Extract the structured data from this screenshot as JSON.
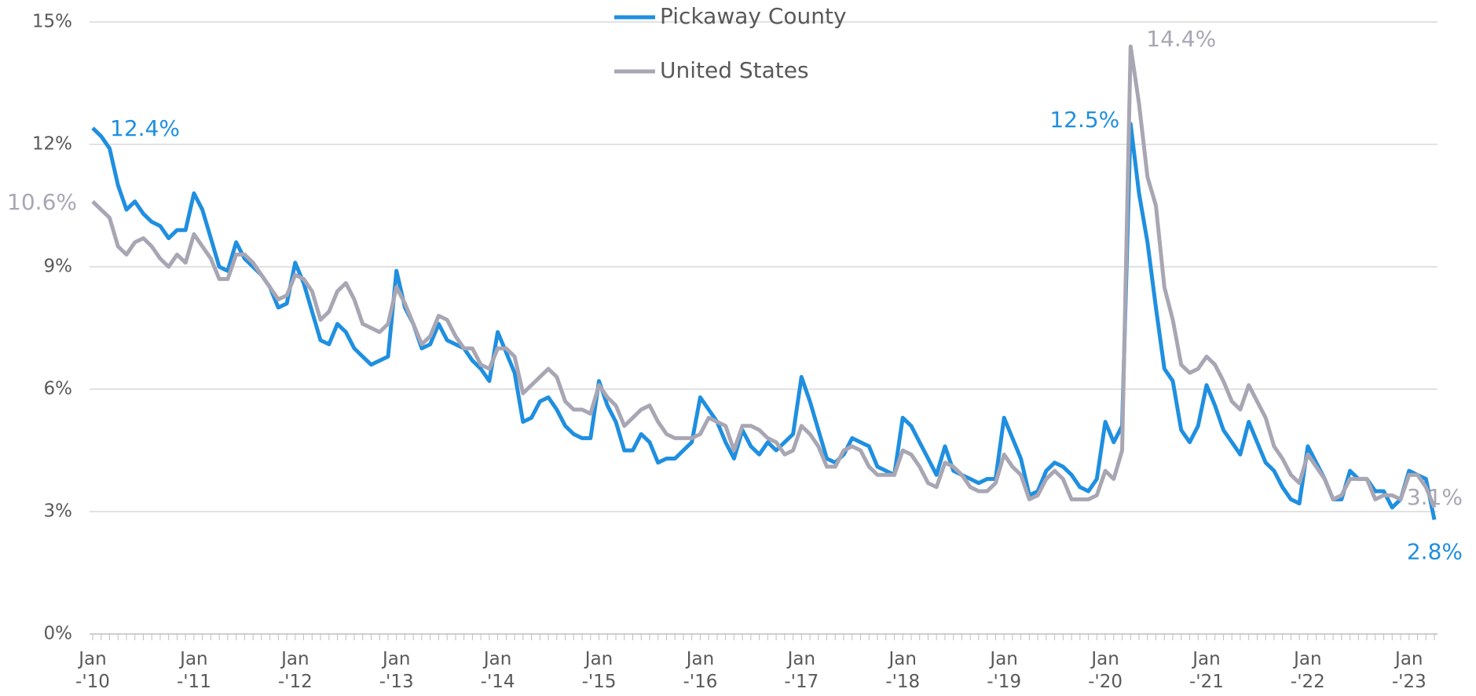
{
  "chart_data": {
    "type": "line",
    "categories": [
      "Jan\n-'10",
      null,
      null,
      null,
      null,
      null,
      null,
      null,
      null,
      null,
      null,
      null,
      "Jan\n-'11",
      null,
      null,
      null,
      null,
      null,
      null,
      null,
      null,
      null,
      null,
      null,
      "Jan\n-'12",
      null,
      null,
      null,
      null,
      null,
      null,
      null,
      null,
      null,
      null,
      null,
      "Jan\n-'13",
      null,
      null,
      null,
      null,
      null,
      null,
      null,
      null,
      null,
      null,
      null,
      "Jan\n-'14",
      null,
      null,
      null,
      null,
      null,
      null,
      null,
      null,
      null,
      null,
      null,
      "Jan\n-'15",
      null,
      null,
      null,
      null,
      null,
      null,
      null,
      null,
      null,
      null,
      null,
      "Jan\n-'16",
      null,
      null,
      null,
      null,
      null,
      null,
      null,
      null,
      null,
      null,
      null,
      "Jan\n-'17",
      null,
      null,
      null,
      null,
      null,
      null,
      null,
      null,
      null,
      null,
      null,
      "Jan\n-'18",
      null,
      null,
      null,
      null,
      null,
      null,
      null,
      null,
      null,
      null,
      null,
      "Jan\n-'19",
      null,
      null,
      null,
      null,
      null,
      null,
      null,
      null,
      null,
      null,
      null,
      "Jan\n-'20",
      null,
      null,
      null,
      null,
      null,
      null,
      null,
      null,
      null,
      null,
      null,
      "Jan\n-'21",
      null,
      null,
      null,
      null,
      null,
      null,
      null,
      null,
      null,
      null,
      null,
      "Jan\n-'22",
      null,
      null,
      null,
      null,
      null,
      null,
      null,
      null,
      null,
      null,
      null,
      "Jan\n-'23",
      null,
      null,
      null
    ],
    "series": [
      {
        "name": "Pickaway County",
        "color": "#1f8fe0",
        "values": [
          12.4,
          12.2,
          11.9,
          11.0,
          10.4,
          10.6,
          10.3,
          10.1,
          10.0,
          9.7,
          9.9,
          9.9,
          10.8,
          10.4,
          9.7,
          9.0,
          8.9,
          9.6,
          9.2,
          9.0,
          8.8,
          8.5,
          8.0,
          8.1,
          9.1,
          8.6,
          7.9,
          7.2,
          7.1,
          7.6,
          7.4,
          7.0,
          6.8,
          6.6,
          6.7,
          6.8,
          8.9,
          8.0,
          7.6,
          7.0,
          7.1,
          7.6,
          7.2,
          7.1,
          7.0,
          6.7,
          6.5,
          6.2,
          7.4,
          6.9,
          6.4,
          5.2,
          5.3,
          5.7,
          5.8,
          5.5,
          5.1,
          4.9,
          4.8,
          4.8,
          6.2,
          5.6,
          5.2,
          4.5,
          4.5,
          4.9,
          4.7,
          4.2,
          4.3,
          4.3,
          4.5,
          4.7,
          5.8,
          5.5,
          5.2,
          4.7,
          4.3,
          5.0,
          4.6,
          4.4,
          4.7,
          4.5,
          4.7,
          4.9,
          6.3,
          5.7,
          5.0,
          4.3,
          4.2,
          4.4,
          4.8,
          4.7,
          4.6,
          4.1,
          4.0,
          3.9,
          5.3,
          5.1,
          4.7,
          4.3,
          3.9,
          4.6,
          4.0,
          3.9,
          3.8,
          3.7,
          3.8,
          3.8,
          5.3,
          4.8,
          4.3,
          3.4,
          3.5,
          4.0,
          4.2,
          4.1,
          3.9,
          3.6,
          3.5,
          3.8,
          5.2,
          4.7,
          5.1,
          12.5,
          10.8,
          9.6,
          8.0,
          6.5,
          6.2,
          5.0,
          4.7,
          5.1,
          6.1,
          5.6,
          5.0,
          4.7,
          4.4,
          5.2,
          4.7,
          4.2,
          4.0,
          3.6,
          3.3,
          3.2,
          4.6,
          4.2,
          3.8,
          3.3,
          3.3,
          4.0,
          3.8,
          3.8,
          3.5,
          3.5,
          3.1,
          3.3,
          4.0,
          3.9,
          3.8,
          2.8
        ],
        "value_labels": [
          "12.4%",
          null,
          null,
          null,
          null,
          null,
          null,
          null,
          null,
          null,
          null,
          null,
          null,
          null,
          null,
          null,
          null,
          null,
          null,
          null,
          null,
          null,
          null,
          null,
          null,
          null,
          null,
          null,
          null,
          null,
          null,
          null,
          null,
          null,
          null,
          null,
          null,
          null,
          null,
          null,
          null,
          null,
          null,
          null,
          null,
          null,
          null,
          null,
          null,
          null,
          null,
          null,
          null,
          null,
          null,
          null,
          null,
          null,
          null,
          null,
          null,
          null,
          null,
          null,
          null,
          null,
          null,
          null,
          null,
          null,
          null,
          null,
          null,
          null,
          null,
          null,
          null,
          null,
          null,
          null,
          null,
          null,
          null,
          null,
          null,
          null,
          null,
          null,
          null,
          null,
          null,
          null,
          null,
          null,
          null,
          null,
          null,
          null,
          null,
          null,
          null,
          null,
          null,
          null,
          null,
          null,
          null,
          null,
          null,
          null,
          null,
          null,
          null,
          null,
          null,
          null,
          null,
          null,
          null,
          null,
          null,
          null,
          null,
          "12.5%",
          null,
          null,
          null,
          null,
          null,
          null,
          null,
          null,
          null,
          null,
          null,
          null,
          null,
          null,
          null,
          null,
          null,
          null,
          null,
          null,
          null,
          null,
          null,
          null,
          null,
          null,
          null,
          null,
          null,
          null,
          null,
          null,
          null,
          null,
          null,
          "2.8%"
        ]
      },
      {
        "name": "United States",
        "color": "#a9a6b4",
        "values": [
          10.6,
          10.4,
          10.2,
          9.5,
          9.3,
          9.6,
          9.7,
          9.5,
          9.2,
          9.0,
          9.3,
          9.1,
          9.8,
          9.5,
          9.2,
          8.7,
          8.7,
          9.3,
          9.3,
          9.1,
          8.8,
          8.5,
          8.2,
          8.3,
          8.8,
          8.7,
          8.4,
          7.7,
          7.9,
          8.4,
          8.6,
          8.2,
          7.6,
          7.5,
          7.4,
          7.6,
          8.5,
          8.1,
          7.6,
          7.1,
          7.3,
          7.8,
          7.7,
          7.3,
          7.0,
          7.0,
          6.6,
          6.5,
          7.0,
          7.0,
          6.8,
          5.9,
          6.1,
          6.3,
          6.5,
          6.3,
          5.7,
          5.5,
          5.5,
          5.4,
          6.1,
          5.8,
          5.6,
          5.1,
          5.3,
          5.5,
          5.6,
          5.2,
          4.9,
          4.8,
          4.8,
          4.8,
          4.9,
          5.3,
          5.2,
          5.1,
          4.5,
          5.1,
          5.1,
          5.0,
          4.8,
          4.7,
          4.4,
          4.5,
          5.1,
          4.9,
          4.6,
          4.1,
          4.1,
          4.5,
          4.6,
          4.5,
          4.1,
          3.9,
          3.9,
          3.9,
          4.5,
          4.4,
          4.1,
          3.7,
          3.6,
          4.2,
          4.1,
          3.9,
          3.6,
          3.5,
          3.5,
          3.7,
          4.4,
          4.1,
          3.9,
          3.3,
          3.4,
          3.8,
          4.0,
          3.8,
          3.3,
          3.3,
          3.3,
          3.4,
          4.0,
          3.8,
          4.5,
          14.4,
          13.0,
          11.2,
          10.5,
          8.5,
          7.7,
          6.6,
          6.4,
          6.5,
          6.8,
          6.6,
          6.2,
          5.7,
          5.5,
          6.1,
          5.7,
          5.3,
          4.6,
          4.3,
          3.9,
          3.7,
          4.4,
          4.1,
          3.8,
          3.3,
          3.4,
          3.8,
          3.8,
          3.8,
          3.3,
          3.4,
          3.4,
          3.3,
          3.9,
          3.9,
          3.6,
          3.1
        ],
        "value_labels": [
          "10.6%",
          null,
          null,
          null,
          null,
          null,
          null,
          null,
          null,
          null,
          null,
          null,
          null,
          null,
          null,
          null,
          null,
          null,
          null,
          null,
          null,
          null,
          null,
          null,
          null,
          null,
          null,
          null,
          null,
          null,
          null,
          null,
          null,
          null,
          null,
          null,
          null,
          null,
          null,
          null,
          null,
          null,
          null,
          null,
          null,
          null,
          null,
          null,
          null,
          null,
          null,
          null,
          null,
          null,
          null,
          null,
          null,
          null,
          null,
          null,
          null,
          null,
          null,
          null,
          null,
          null,
          null,
          null,
          null,
          null,
          null,
          null,
          null,
          null,
          null,
          null,
          null,
          null,
          null,
          null,
          null,
          null,
          null,
          null,
          null,
          null,
          null,
          null,
          null,
          null,
          null,
          null,
          null,
          null,
          null,
          null,
          null,
          null,
          null,
          null,
          null,
          null,
          null,
          null,
          null,
          null,
          null,
          null,
          null,
          null,
          null,
          null,
          null,
          null,
          null,
          null,
          null,
          null,
          null,
          null,
          null,
          null,
          null,
          "14.4%",
          null,
          null,
          null,
          null,
          null,
          null,
          null,
          null,
          null,
          null,
          null,
          null,
          null,
          null,
          null,
          null,
          null,
          null,
          null,
          null,
          null,
          null,
          null,
          null,
          null,
          null,
          null,
          null,
          null,
          null,
          null,
          null,
          null,
          null,
          null,
          "3.1%"
        ]
      }
    ],
    "ylim": [
      0,
      15
    ],
    "yticks": [
      {
        "value": 0,
        "label": "0%"
      },
      {
        "value": 3,
        "label": "3%"
      },
      {
        "value": 6,
        "label": "6%"
      },
      {
        "value": 9,
        "label": "9%"
      },
      {
        "value": 12,
        "label": "12%"
      },
      {
        "value": 15,
        "label": "15%"
      }
    ],
    "grid": true,
    "legend": "top"
  }
}
